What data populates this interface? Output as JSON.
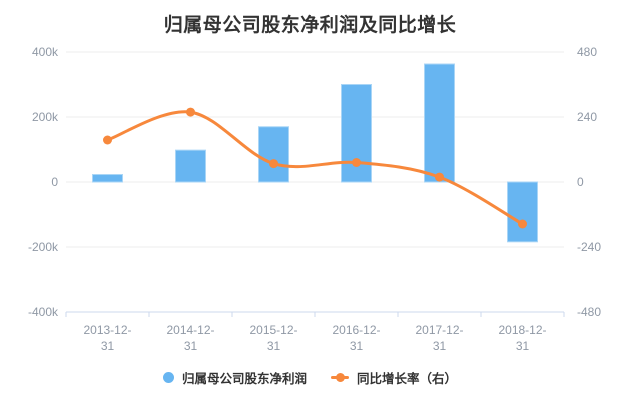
{
  "title": "归属母公司股东净利润及同比增长",
  "colors": {
    "bar": "#67b5f1",
    "bar_edge": "#a9d5f6",
    "line": "#f7883c",
    "grid": "#ececec",
    "axis_line": "#ccd9ee",
    "axis_text": "#8f98a5",
    "title_text": "#333333",
    "legend_text": "#333333"
  },
  "legend": {
    "bar_label": "归属母公司股东净利润",
    "line_label": "同比增长率（右）"
  },
  "chart_data": {
    "type": "bar+line combo",
    "title": "归属母公司股东净利润及同比增长",
    "categories": [
      "2013-12-31",
      "2014-12-31",
      "2015-12-31",
      "2016-12-31",
      "2017-12-31",
      "2018-12-31"
    ],
    "series": [
      {
        "name": "归属母公司股东净利润",
        "type": "bar",
        "yaxis": "left",
        "values": [
          23000,
          98000,
          170000,
          300000,
          363000,
          -184000
        ]
      },
      {
        "name": "同比增长率（右）",
        "type": "line",
        "yaxis": "right",
        "values": [
          155,
          258,
          68,
          72,
          18,
          -155
        ]
      }
    ],
    "left_axis": {
      "min": -400000,
      "max": 400000,
      "tick_labels": [
        "400k",
        "200k",
        "0",
        "-200k",
        "-400k"
      ]
    },
    "right_axis": {
      "min": -480,
      "max": 480,
      "tick_labels": [
        "480",
        "240",
        "0",
        "-240",
        "-480"
      ]
    },
    "grid": true,
    "legend_position": "bottom",
    "smooth_line": true
  }
}
